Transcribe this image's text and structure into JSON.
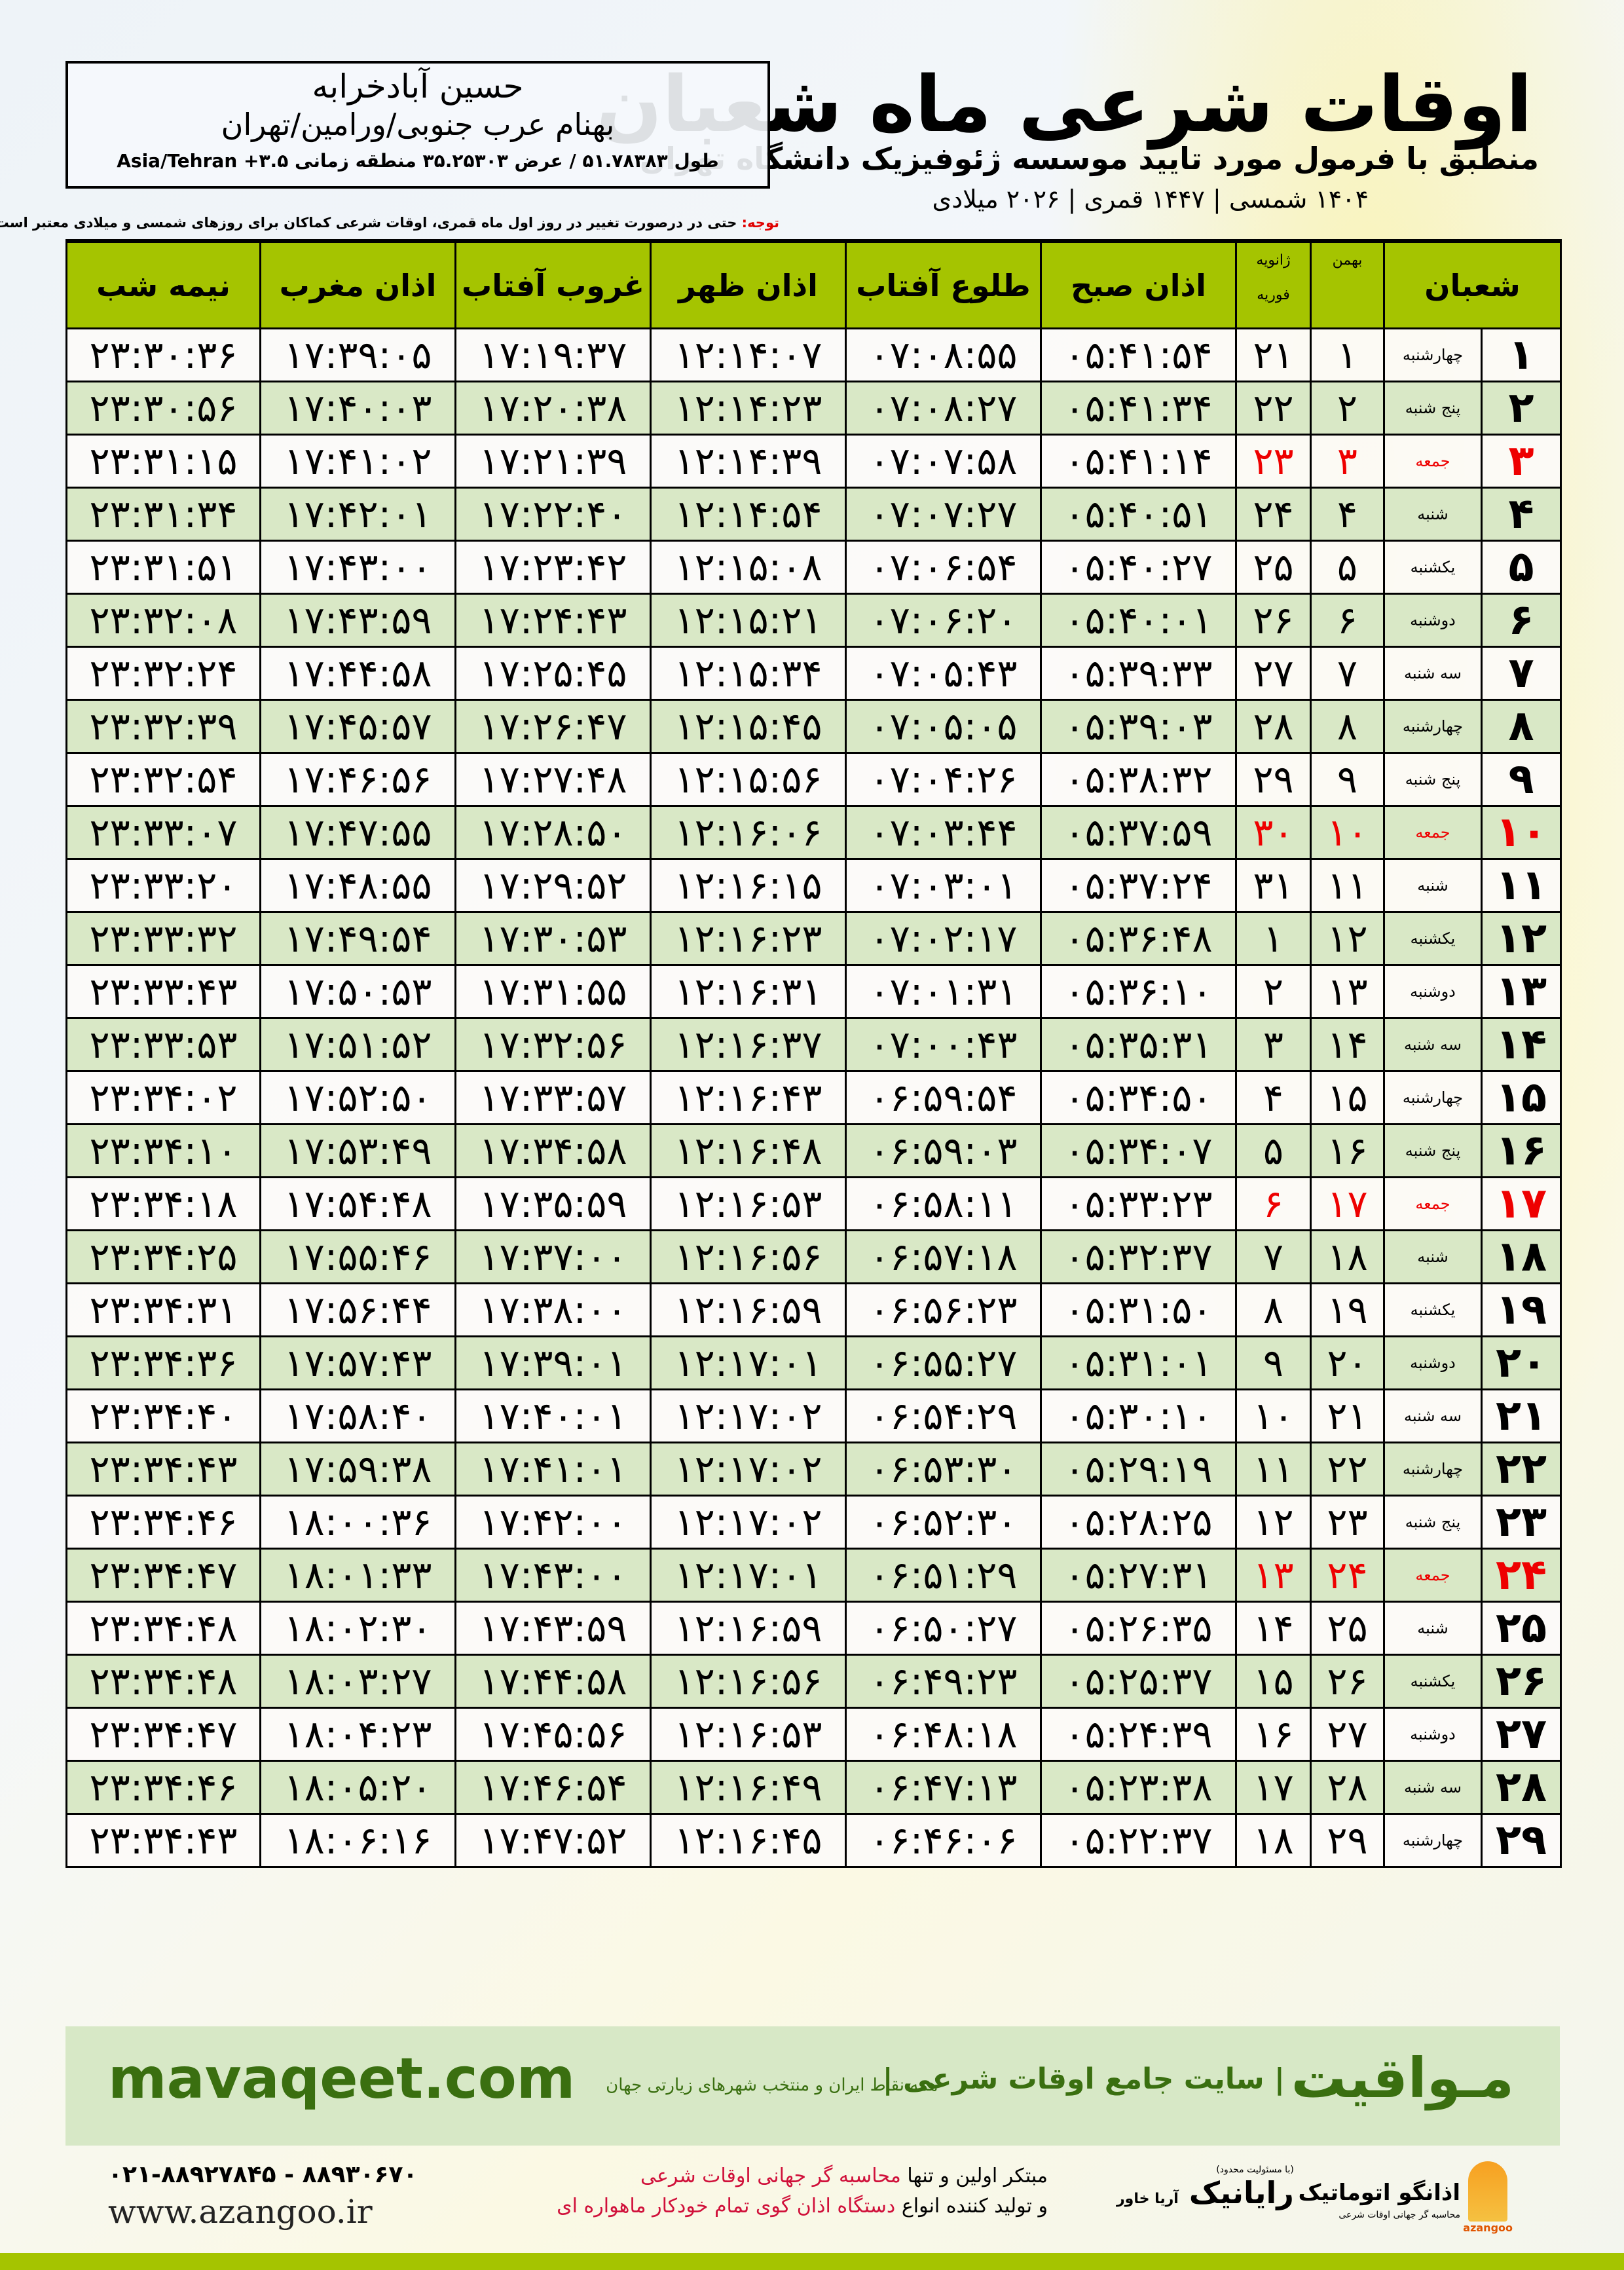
{
  "header": {
    "title": "اوقات شرعی ماه شعبان",
    "subtitle": "منطبق با فرمول مورد تایید موسسه ژئوفیزیک دانشگاه تهران",
    "dates": "۱۴۰۴ شمسی | ۱۴۴۷ قمری | ۲۰۲۶ میلادی"
  },
  "location": {
    "city": "حسین آبادخرابه",
    "region": "بهنام عرب جنوبی/ورامین/تهران",
    "coords": "طول ۵۱.۷۸۳۸۳ / عرض ۳۵.۲۵۳۰۳ منطقه زمانی ۳.۵+ Asia/Tehran"
  },
  "note": {
    "label": "توجه:",
    "text": " حتی در درصورت تغییر در روز اول ماه قمری، اوقات شرعی کماکان برای روزهای شمسی و میلادی معتبر است."
  },
  "table": {
    "headers": {
      "month": "شعبان",
      "bahman": "بهمن",
      "jan": "ژانویه",
      "feb": "فوریه",
      "fajr": "اذان صبح",
      "sunrise": "طلوع آفتاب",
      "dhuhr": "اذان ظهر",
      "sunset": "غروب آفتاب",
      "maghrib": "اذان مغرب",
      "midnight": "نیمه شب"
    },
    "friday_color": "#ee0000",
    "row_colors": [
      "#ffffff",
      "#d9e8c6"
    ],
    "header_color": "#a5c400",
    "rows": [
      [
        "۱",
        "چهارشنبه",
        "۱",
        "۲۱",
        "۰۵:۴۱:۵۴",
        "۰۷:۰۸:۵۵",
        "۱۲:۱۴:۰۷",
        "۱۷:۱۹:۳۷",
        "۱۷:۳۹:۰۵",
        "۲۳:۳۰:۳۶"
      ],
      [
        "۲",
        "پنج شنبه",
        "۲",
        "۲۲",
        "۰۵:۴۱:۳۴",
        "۰۷:۰۸:۲۷",
        "۱۲:۱۴:۲۳",
        "۱۷:۲۰:۳۸",
        "۱۷:۴۰:۰۳",
        "۲۳:۳۰:۵۶"
      ],
      [
        "۳",
        "جمعه",
        "۳",
        "۲۳",
        "۰۵:۴۱:۱۴",
        "۰۷:۰۷:۵۸",
        "۱۲:۱۴:۳۹",
        "۱۷:۲۱:۳۹",
        "۱۷:۴۱:۰۲",
        "۲۳:۳۱:۱۵"
      ],
      [
        "۴",
        "شنبه",
        "۴",
        "۲۴",
        "۰۵:۴۰:۵۱",
        "۰۷:۰۷:۲۷",
        "۱۲:۱۴:۵۴",
        "۱۷:۲۲:۴۰",
        "۱۷:۴۲:۰۱",
        "۲۳:۳۱:۳۴"
      ],
      [
        "۵",
        "یکشنبه",
        "۵",
        "۲۵",
        "۰۵:۴۰:۲۷",
        "۰۷:۰۶:۵۴",
        "۱۲:۱۵:۰۸",
        "۱۷:۲۳:۴۲",
        "۱۷:۴۳:۰۰",
        "۲۳:۳۱:۵۱"
      ],
      [
        "۶",
        "دوشنبه",
        "۶",
        "۲۶",
        "۰۵:۴۰:۰۱",
        "۰۷:۰۶:۲۰",
        "۱۲:۱۵:۲۱",
        "۱۷:۲۴:۴۳",
        "۱۷:۴۳:۵۹",
        "۲۳:۳۲:۰۸"
      ],
      [
        "۷",
        "سه شنبه",
        "۷",
        "۲۷",
        "۰۵:۳۹:۳۳",
        "۰۷:۰۵:۴۳",
        "۱۲:۱۵:۳۴",
        "۱۷:۲۵:۴۵",
        "۱۷:۴۴:۵۸",
        "۲۳:۳۲:۲۴"
      ],
      [
        "۸",
        "چهارشنبه",
        "۸",
        "۲۸",
        "۰۵:۳۹:۰۳",
        "۰۷:۰۵:۰۵",
        "۱۲:۱۵:۴۵",
        "۱۷:۲۶:۴۷",
        "۱۷:۴۵:۵۷",
        "۲۳:۳۲:۳۹"
      ],
      [
        "۹",
        "پنج شنبه",
        "۹",
        "۲۹",
        "۰۵:۳۸:۳۲",
        "۰۷:۰۴:۲۶",
        "۱۲:۱۵:۵۶",
        "۱۷:۲۷:۴۸",
        "۱۷:۴۶:۵۶",
        "۲۳:۳۲:۵۴"
      ],
      [
        "۱۰",
        "جمعه",
        "۱۰",
        "۳۰",
        "۰۵:۳۷:۵۹",
        "۰۷:۰۳:۴۴",
        "۱۲:۱۶:۰۶",
        "۱۷:۲۸:۵۰",
        "۱۷:۴۷:۵۵",
        "۲۳:۳۳:۰۷"
      ],
      [
        "۱۱",
        "شنبه",
        "۱۱",
        "۳۱",
        "۰۵:۳۷:۲۴",
        "۰۷:۰۳:۰۱",
        "۱۲:۱۶:۱۵",
        "۱۷:۲۹:۵۲",
        "۱۷:۴۸:۵۵",
        "۲۳:۳۳:۲۰"
      ],
      [
        "۱۲",
        "یکشنبه",
        "۱۲",
        "۱",
        "۰۵:۳۶:۴۸",
        "۰۷:۰۲:۱۷",
        "۱۲:۱۶:۲۳",
        "۱۷:۳۰:۵۳",
        "۱۷:۴۹:۵۴",
        "۲۳:۳۳:۳۲"
      ],
      [
        "۱۳",
        "دوشنبه",
        "۱۳",
        "۲",
        "۰۵:۳۶:۱۰",
        "۰۷:۰۱:۳۱",
        "۱۲:۱۶:۳۱",
        "۱۷:۳۱:۵۵",
        "۱۷:۵۰:۵۳",
        "۲۳:۳۳:۴۳"
      ],
      [
        "۱۴",
        "سه شنبه",
        "۱۴",
        "۳",
        "۰۵:۳۵:۳۱",
        "۰۷:۰۰:۴۳",
        "۱۲:۱۶:۳۷",
        "۱۷:۳۲:۵۶",
        "۱۷:۵۱:۵۲",
        "۲۳:۳۳:۵۳"
      ],
      [
        "۱۵",
        "چهارشنبه",
        "۱۵",
        "۴",
        "۰۵:۳۴:۵۰",
        "۰۶:۵۹:۵۴",
        "۱۲:۱۶:۴۳",
        "۱۷:۳۳:۵۷",
        "۱۷:۵۲:۵۰",
        "۲۳:۳۴:۰۲"
      ],
      [
        "۱۶",
        "پنج شنبه",
        "۱۶",
        "۵",
        "۰۵:۳۴:۰۷",
        "۰۶:۵۹:۰۳",
        "۱۲:۱۶:۴۸",
        "۱۷:۳۴:۵۸",
        "۱۷:۵۳:۴۹",
        "۲۳:۳۴:۱۰"
      ],
      [
        "۱۷",
        "جمعه",
        "۱۷",
        "۶",
        "۰۵:۳۳:۲۳",
        "۰۶:۵۸:۱۱",
        "۱۲:۱۶:۵۳",
        "۱۷:۳۵:۵۹",
        "۱۷:۵۴:۴۸",
        "۲۳:۳۴:۱۸"
      ],
      [
        "۱۸",
        "شنبه",
        "۱۸",
        "۷",
        "۰۵:۳۲:۳۷",
        "۰۶:۵۷:۱۸",
        "۱۲:۱۶:۵۶",
        "۱۷:۳۷:۰۰",
        "۱۷:۵۵:۴۶",
        "۲۳:۳۴:۲۵"
      ],
      [
        "۱۹",
        "یکشنبه",
        "۱۹",
        "۸",
        "۰۵:۳۱:۵۰",
        "۰۶:۵۶:۲۳",
        "۱۲:۱۶:۵۹",
        "۱۷:۳۸:۰۰",
        "۱۷:۵۶:۴۴",
        "۲۳:۳۴:۳۱"
      ],
      [
        "۲۰",
        "دوشنبه",
        "۲۰",
        "۹",
        "۰۵:۳۱:۰۱",
        "۰۶:۵۵:۲۷",
        "۱۲:۱۷:۰۱",
        "۱۷:۳۹:۰۱",
        "۱۷:۵۷:۴۳",
        "۲۳:۳۴:۳۶"
      ],
      [
        "۲۱",
        "سه شنبه",
        "۲۱",
        "۱۰",
        "۰۵:۳۰:۱۰",
        "۰۶:۵۴:۲۹",
        "۱۲:۱۷:۰۲",
        "۱۷:۴۰:۰۱",
        "۱۷:۵۸:۴۰",
        "۲۳:۳۴:۴۰"
      ],
      [
        "۲۲",
        "چهارشنبه",
        "۲۲",
        "۱۱",
        "۰۵:۲۹:۱۹",
        "۰۶:۵۳:۳۰",
        "۱۲:۱۷:۰۲",
        "۱۷:۴۱:۰۱",
        "۱۷:۵۹:۳۸",
        "۲۳:۳۴:۴۳"
      ],
      [
        "۲۳",
        "پنج شنبه",
        "۲۳",
        "۱۲",
        "۰۵:۲۸:۲۵",
        "۰۶:۵۲:۳۰",
        "۱۲:۱۷:۰۲",
        "۱۷:۴۲:۰۰",
        "۱۸:۰۰:۳۶",
        "۲۳:۳۴:۴۶"
      ],
      [
        "۲۴",
        "جمعه",
        "۲۴",
        "۱۳",
        "۰۵:۲۷:۳۱",
        "۰۶:۵۱:۲۹",
        "۱۲:۱۷:۰۱",
        "۱۷:۴۳:۰۰",
        "۱۸:۰۱:۳۳",
        "۲۳:۳۴:۴۷"
      ],
      [
        "۲۵",
        "شنبه",
        "۲۵",
        "۱۴",
        "۰۵:۲۶:۳۵",
        "۰۶:۵۰:۲۷",
        "۱۲:۱۶:۵۹",
        "۱۷:۴۳:۵۹",
        "۱۸:۰۲:۳۰",
        "۲۳:۳۴:۴۸"
      ],
      [
        "۲۶",
        "یکشنبه",
        "۲۶",
        "۱۵",
        "۰۵:۲۵:۳۷",
        "۰۶:۴۹:۲۳",
        "۱۲:۱۶:۵۶",
        "۱۷:۴۴:۵۸",
        "۱۸:۰۳:۲۷",
        "۲۳:۳۴:۴۸"
      ],
      [
        "۲۷",
        "دوشنبه",
        "۲۷",
        "۱۶",
        "۰۵:۲۴:۳۹",
        "۰۶:۴۸:۱۸",
        "۱۲:۱۶:۵۳",
        "۱۷:۴۵:۵۶",
        "۱۸:۰۴:۲۳",
        "۲۳:۳۴:۴۷"
      ],
      [
        "۲۸",
        "سه شنبه",
        "۲۸",
        "۱۷",
        "۰۵:۲۳:۳۸",
        "۰۶:۴۷:۱۳",
        "۱۲:۱۶:۴۹",
        "۱۷:۴۶:۵۴",
        "۱۸:۰۵:۲۰",
        "۲۳:۳۴:۴۶"
      ],
      [
        "۲۹",
        "چهارشنبه",
        "۲۹",
        "۱۸",
        "۰۵:۲۲:۳۷",
        "۰۶:۴۶:۰۶",
        "۱۲:۱۶:۴۵",
        "۱۷:۴۷:۵۲",
        "۱۸:۰۶:۱۶",
        "۲۳:۳۴:۴۳"
      ]
    ]
  },
  "banner": {
    "brand": "مـواقیت",
    "slogan": "| سایت جامع اوقات شرعی |",
    "sub": "همه نقاط ایران و منتخب شهرهای زیارتی جهان",
    "site": "mavaqeet.com",
    "color": "#3a6f10"
  },
  "footer": {
    "line1_a": "مبتکر اولین و تنها ",
    "line1_b": "محاسبه گر جهانی اوقات شرعی",
    "line2_a": "و تولید کننده انواع ",
    "line2_b": "دستگاه اذان گوی تمام خودکار ماهواره ای",
    "phones": "۰۲۱-۸۸۹۲۷۸۴۵ - ۸۸۹۳۰۶۷۰",
    "web": "www.azangoo.ir",
    "logo_rayanik": "رایانیک",
    "logo_rayanik_small": "(با مسئولیت محدود)",
    "logo_rayanik_side": "آریا خاور",
    "logo_azangoo": "اذانگو اتوماتیک",
    "logo_azangoo_tag": "محاسبه گر جهانی اوقات شرعی",
    "logo_azangoo_en": "azangoo",
    "accent_red": "#d0103a"
  }
}
